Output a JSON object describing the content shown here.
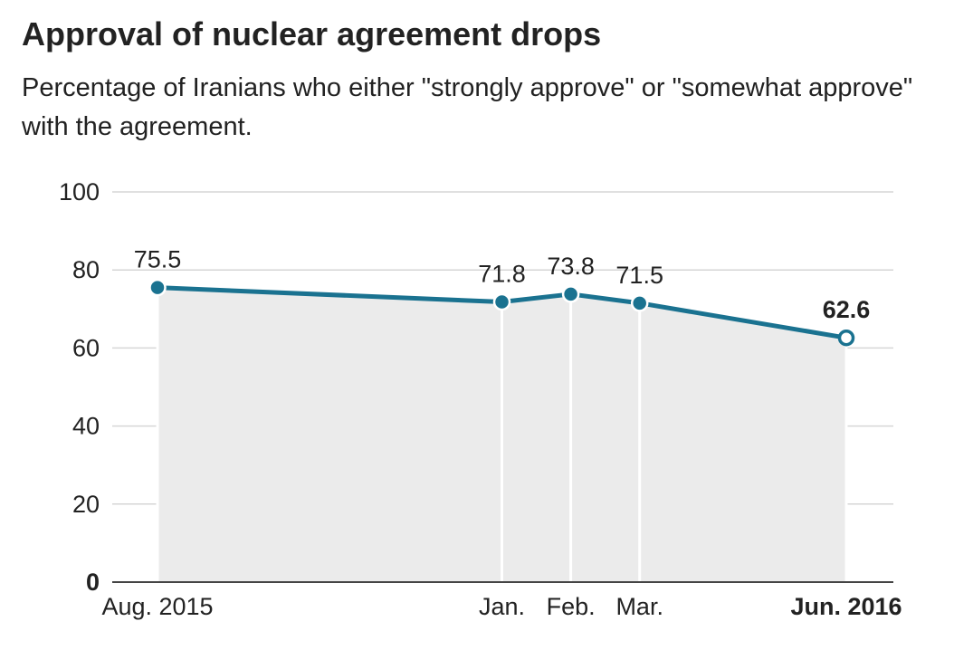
{
  "chart_data": {
    "type": "area",
    "title": "Approval of nuclear agreement drops",
    "subtitle": "Percentage of Iranians who either \"strongly approve\" or \"somewhat approve\" with the agreement.",
    "xlabel": "",
    "ylabel": "",
    "ylim": [
      0,
      100
    ],
    "y_ticks": [
      "100",
      "80",
      "60",
      "40",
      "20",
      "0"
    ],
    "grid": true,
    "series": [
      {
        "name": "Approval",
        "color": "#1a7290",
        "fill": "#ebebeb",
        "points": [
          {
            "date": "2015-08",
            "tick": "Aug. 2015",
            "value": 75.5,
            "label": "75.5"
          },
          {
            "date": "2016-01",
            "tick": "Jan.",
            "value": 71.8,
            "label": "71.8"
          },
          {
            "date": "2016-02",
            "tick": "Feb.",
            "value": 73.8,
            "label": "73.8"
          },
          {
            "date": "2016-03",
            "tick": "Mar.",
            "value": 71.5,
            "label": "71.5"
          },
          {
            "date": "2016-06",
            "tick": "Jun. 2016",
            "value": 62.6,
            "label": "62.6",
            "highlight": true
          }
        ]
      }
    ]
  }
}
